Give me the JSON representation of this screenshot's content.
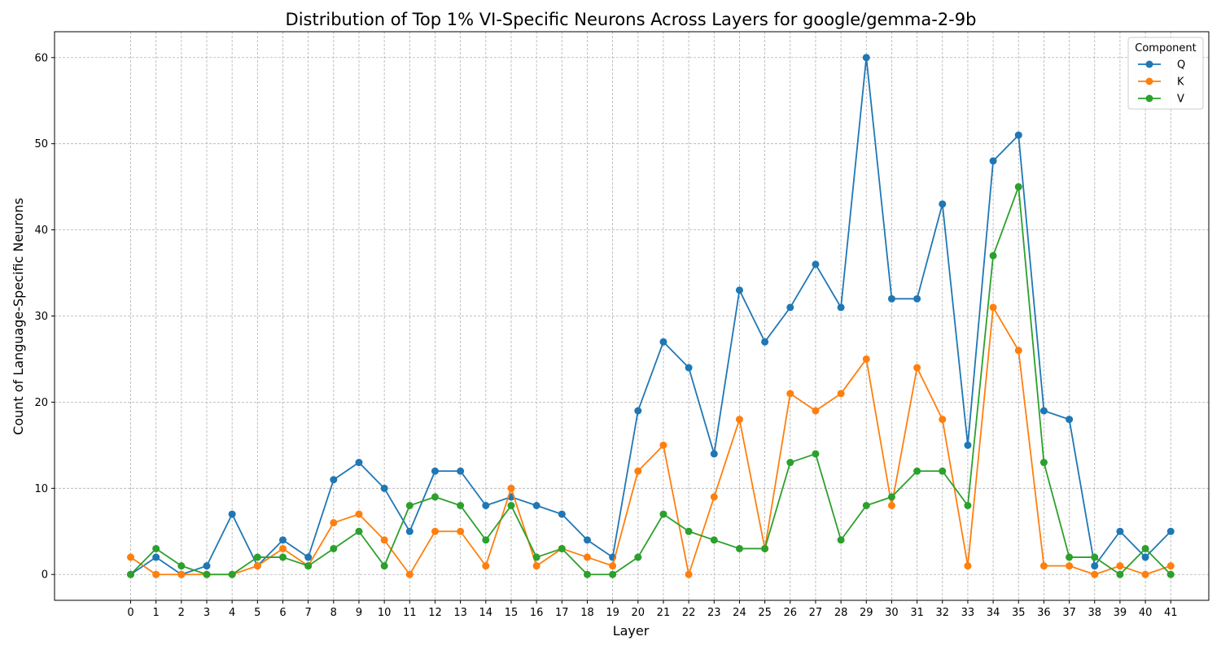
{
  "chart_data": {
    "type": "line",
    "title": "Distribution of Top 1% VI-Specific Neurons Across Layers for google/gemma-2-9b",
    "xlabel": "Layer",
    "ylabel": "Count of Language-Specific Neurons",
    "x": [
      0,
      1,
      2,
      3,
      4,
      5,
      6,
      7,
      8,
      9,
      10,
      11,
      12,
      13,
      14,
      15,
      16,
      17,
      18,
      19,
      20,
      21,
      22,
      23,
      24,
      25,
      26,
      27,
      28,
      29,
      30,
      31,
      32,
      33,
      34,
      35,
      36,
      37,
      38,
      39,
      40,
      41
    ],
    "xlim": [
      -3,
      42.5
    ],
    "ylim": [
      -3,
      63
    ],
    "yticks": [
      0,
      10,
      20,
      30,
      40,
      50,
      60
    ],
    "grid": true,
    "legend_title": "Component",
    "legend_position": "top-right",
    "series": [
      {
        "name": "Q",
        "color": "#1f77b4",
        "values": [
          0,
          2,
          0,
          1,
          7,
          1,
          4,
          2,
          11,
          13,
          10,
          5,
          12,
          12,
          8,
          9,
          8,
          7,
          4,
          2,
          19,
          27,
          24,
          14,
          33,
          27,
          31,
          36,
          31,
          60,
          32,
          32,
          43,
          15,
          48,
          51,
          19,
          18,
          1,
          5,
          2,
          5
        ]
      },
      {
        "name": "K",
        "color": "#ff7f0e",
        "values": [
          2,
          0,
          0,
          0,
          0,
          1,
          3,
          1,
          6,
          7,
          4,
          0,
          5,
          5,
          1,
          10,
          1,
          3,
          2,
          1,
          12,
          15,
          0,
          9,
          18,
          3,
          21,
          19,
          21,
          25,
          8,
          24,
          18,
          1,
          31,
          26,
          1,
          1,
          0,
          1,
          0,
          1
        ]
      },
      {
        "name": "V",
        "color": "#2ca02c",
        "values": [
          0,
          3,
          1,
          0,
          0,
          2,
          2,
          1,
          3,
          5,
          1,
          8,
          9,
          8,
          4,
          8,
          2,
          3,
          0,
          0,
          2,
          7,
          5,
          4,
          3,
          3,
          13,
          14,
          4,
          8,
          9,
          12,
          12,
          8,
          37,
          45,
          13,
          2,
          2,
          0,
          3,
          0
        ]
      }
    ]
  }
}
